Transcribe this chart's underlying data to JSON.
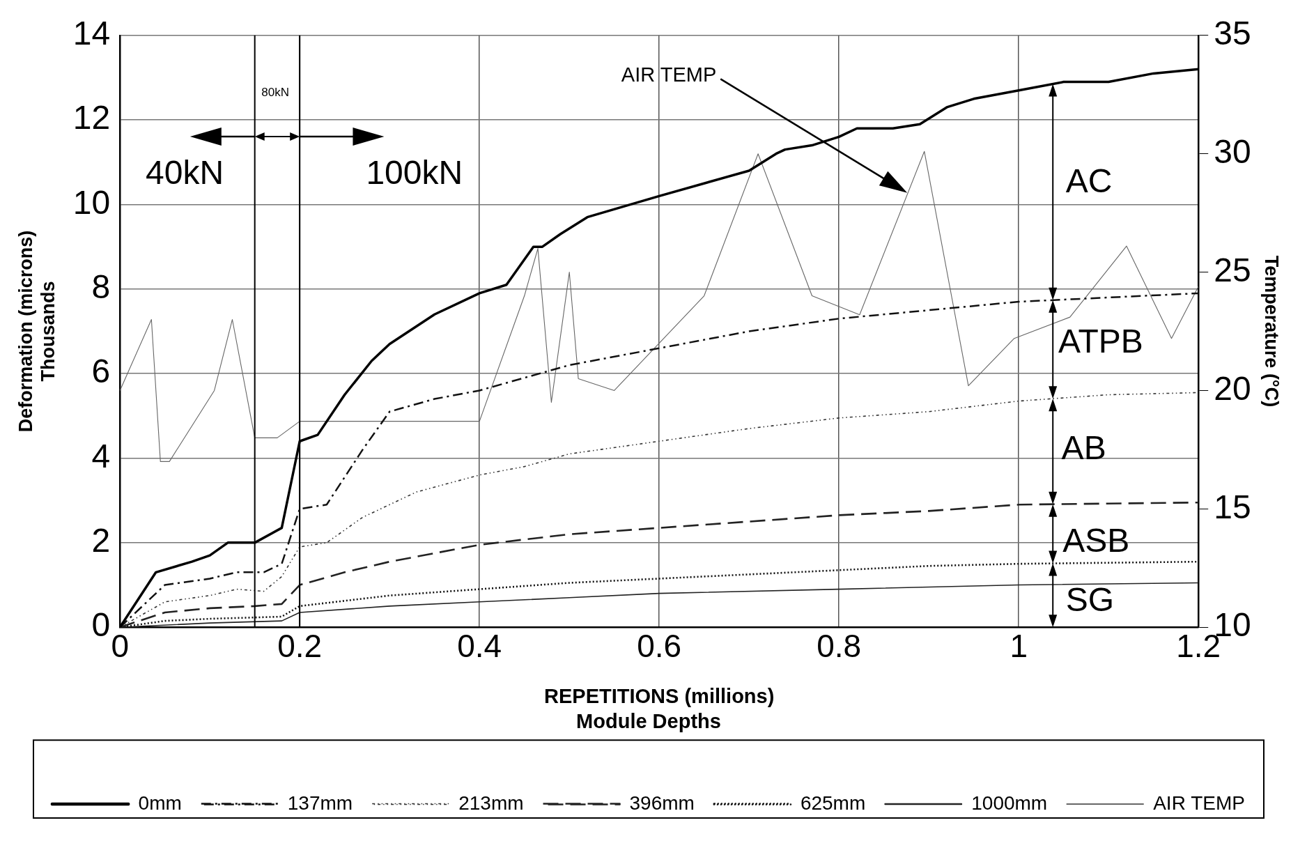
{
  "chart_data": {
    "type": "line",
    "xlabel": "REPETITIONS (millions)",
    "ylabel": "Deformation (microns)\nThousands",
    "y2label": "Temperature (°C)",
    "legend_title": "Module Depths",
    "xlim": [
      0,
      1.2
    ],
    "xticks": [
      0,
      0.2,
      0.4,
      0.6,
      0.8,
      1,
      1.2
    ],
    "ylim": [
      0,
      14
    ],
    "yticks": [
      0,
      2,
      4,
      6,
      8,
      10,
      12,
      14
    ],
    "y2lim": [
      10,
      35
    ],
    "y2ticks": [
      10,
      15,
      20,
      25,
      30,
      35
    ],
    "grid": true,
    "legend": "bottom",
    "marker": "none",
    "series": [
      {
        "name": "0mm",
        "color": "#000000",
        "line_style": "solid",
        "x": [
          0,
          0.04,
          0.08,
          0.1,
          0.12,
          0.15,
          0.18,
          0.2,
          0.22,
          0.25,
          0.28,
          0.3,
          0.35,
          0.4,
          0.43,
          0.46,
          0.47,
          0.49,
          0.52,
          0.6,
          0.7,
          0.73,
          0.74,
          0.77,
          0.8,
          0.82,
          0.86,
          0.89,
          0.92,
          0.95,
          1.0,
          1.05,
          1.1,
          1.15,
          1.2
        ],
        "values": [
          0,
          1.3,
          1.55,
          1.7,
          2.0,
          2.0,
          2.35,
          4.4,
          4.55,
          5.5,
          6.3,
          6.7,
          7.4,
          7.9,
          8.1,
          9.0,
          9.0,
          9.3,
          9.7,
          10.2,
          10.8,
          11.2,
          11.3,
          11.4,
          11.6,
          11.8,
          11.8,
          11.9,
          12.3,
          12.5,
          12.7,
          12.9,
          12.9,
          13.1,
          13.2
        ]
      },
      {
        "name": "137mm",
        "color": "#111111",
        "line_style": "dashed",
        "x": [
          0,
          0.05,
          0.1,
          0.13,
          0.16,
          0.18,
          0.2,
          0.23,
          0.27,
          0.3,
          0.35,
          0.4,
          0.45,
          0.5,
          0.6,
          0.7,
          0.8,
          0.9,
          1.0,
          1.1,
          1.2
        ],
        "values": [
          0,
          1.0,
          1.15,
          1.3,
          1.3,
          1.5,
          2.8,
          2.9,
          4.2,
          5.1,
          5.4,
          5.6,
          5.9,
          6.2,
          6.6,
          7.0,
          7.3,
          7.5,
          7.7,
          7.8,
          7.9
        ]
      },
      {
        "name": "213mm",
        "color": "#333333",
        "line_style": "dotted",
        "x": [
          0,
          0.05,
          0.1,
          0.13,
          0.16,
          0.18,
          0.2,
          0.23,
          0.27,
          0.33,
          0.4,
          0.45,
          0.5,
          0.6,
          0.7,
          0.8,
          0.9,
          1.0,
          1.1,
          1.2
        ],
        "values": [
          0,
          0.6,
          0.75,
          0.9,
          0.85,
          1.2,
          1.9,
          2.0,
          2.6,
          3.2,
          3.6,
          3.8,
          4.1,
          4.4,
          4.7,
          4.95,
          5.1,
          5.35,
          5.5,
          5.55
        ]
      },
      {
        "name": "396mm",
        "color": "#222222",
        "line_style": "dashed",
        "x": [
          0,
          0.05,
          0.1,
          0.15,
          0.18,
          0.2,
          0.25,
          0.3,
          0.4,
          0.5,
          0.6,
          0.7,
          0.8,
          0.9,
          1.0,
          1.2
        ],
        "values": [
          0,
          0.35,
          0.45,
          0.5,
          0.55,
          1.0,
          1.3,
          1.55,
          1.95,
          2.2,
          2.35,
          2.5,
          2.65,
          2.75,
          2.9,
          2.95
        ]
      },
      {
        "name": "625mm",
        "color": "#111111",
        "line_style": "dotted",
        "x": [
          0,
          0.05,
          0.1,
          0.18,
          0.2,
          0.3,
          0.4,
          0.5,
          0.6,
          0.7,
          0.8,
          0.9,
          1.0,
          1.2
        ],
        "values": [
          0,
          0.15,
          0.2,
          0.25,
          0.5,
          0.75,
          0.9,
          1.05,
          1.15,
          1.25,
          1.35,
          1.45,
          1.5,
          1.55
        ]
      },
      {
        "name": "1000mm",
        "color": "#222222",
        "line_style": "solid",
        "x": [
          0,
          0.1,
          0.18,
          0.2,
          0.3,
          0.4,
          0.5,
          0.6,
          0.8,
          1.0,
          1.2
        ],
        "values": [
          0,
          0.1,
          0.15,
          0.35,
          0.5,
          0.6,
          0.7,
          0.8,
          0.9,
          1.0,
          1.05
        ]
      },
      {
        "name": "AIR TEMP",
        "color": "#666666",
        "line_style": "solid",
        "axis": "y2",
        "x": [
          0,
          0.035,
          0.045,
          0.055,
          0.105,
          0.125,
          0.15,
          0.175,
          0.2,
          0.4,
          0.45,
          0.465,
          0.48,
          0.5,
          0.51,
          0.55,
          0.65,
          0.71,
          0.77,
          0.823,
          0.895,
          0.944,
          0.995,
          1.057,
          1.12,
          1.17,
          1.2
        ],
        "values": [
          20,
          23,
          17,
          17,
          20,
          23,
          18,
          18,
          18.7,
          18.7,
          24,
          26,
          19.5,
          25,
          20.5,
          20,
          24,
          30,
          24,
          23.2,
          30.1,
          20.2,
          22.2,
          23.1,
          26.1,
          22.2,
          24.4
        ]
      }
    ],
    "ref_lines": [
      {
        "axis": "x",
        "value": 0.15,
        "color": "#000000"
      },
      {
        "axis": "x",
        "value": 0.2,
        "color": "#000000"
      }
    ],
    "annotations": [
      "40kN",
      "80kN",
      "100kN",
      "AIR TEMP",
      "AC",
      "ATPB",
      "AB",
      "ASB",
      "SG"
    ]
  }
}
